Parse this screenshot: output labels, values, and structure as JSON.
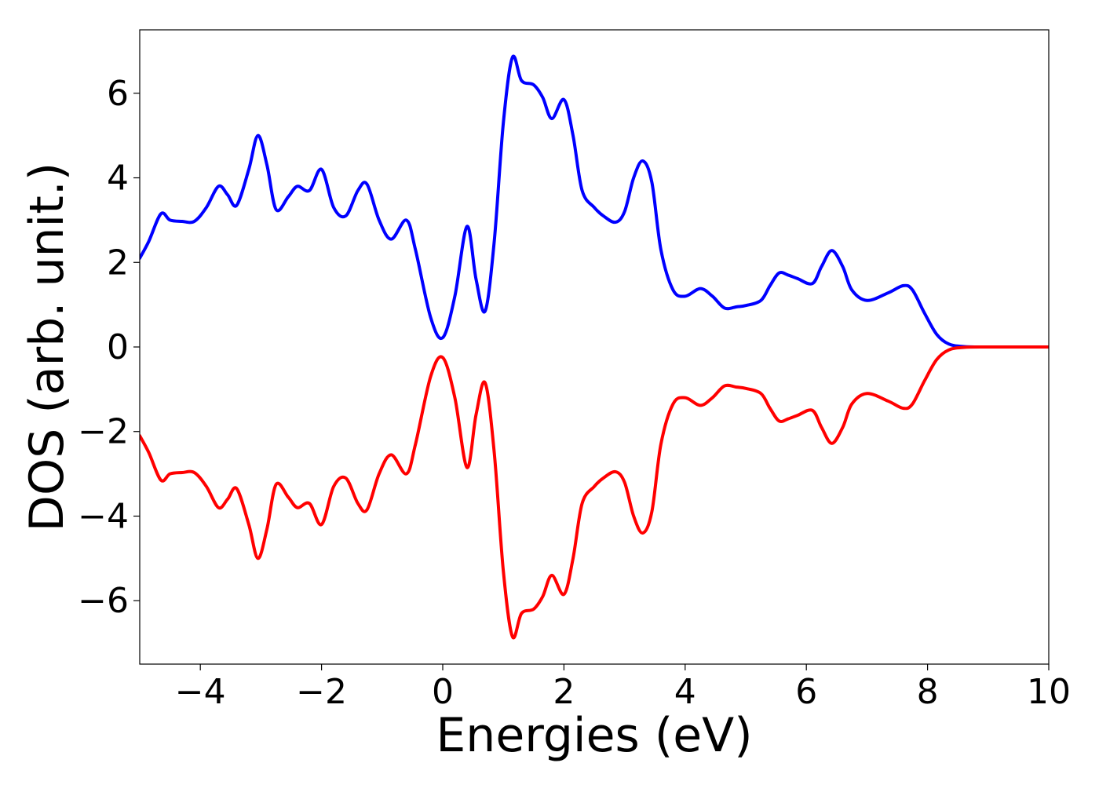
{
  "chart_data": {
    "type": "line",
    "title": "",
    "xlabel": "Energies (eV)",
    "ylabel": "DOS (arb. unit.)",
    "xlim": [
      -5,
      10
    ],
    "ylim": [
      -7.5,
      7.5
    ],
    "xticks": [
      -4,
      -2,
      0,
      2,
      4,
      6,
      8,
      10
    ],
    "xtick_labels": [
      "−4",
      "−2",
      "0",
      "2",
      "4",
      "6",
      "8",
      "10"
    ],
    "yticks": [
      -6,
      -4,
      -2,
      0,
      2,
      4,
      6
    ],
    "ytick_labels": [
      "−6",
      "−4",
      "−2",
      "0",
      "2",
      "4",
      "6"
    ],
    "grid": false,
    "legend": "none",
    "series": [
      {
        "color": "#0000ff",
        "points": [
          [
            -5.0,
            2.1
          ],
          [
            -4.85,
            2.5
          ],
          [
            -4.65,
            3.15
          ],
          [
            -4.5,
            3.0
          ],
          [
            -4.3,
            2.97
          ],
          [
            -4.1,
            2.97
          ],
          [
            -3.9,
            3.3
          ],
          [
            -3.7,
            3.8
          ],
          [
            -3.55,
            3.6
          ],
          [
            -3.4,
            3.35
          ],
          [
            -3.2,
            4.2
          ],
          [
            -3.05,
            5.0
          ],
          [
            -2.9,
            4.3
          ],
          [
            -2.75,
            3.25
          ],
          [
            -2.55,
            3.55
          ],
          [
            -2.4,
            3.8
          ],
          [
            -2.2,
            3.7
          ],
          [
            -2.0,
            4.2
          ],
          [
            -1.8,
            3.3
          ],
          [
            -1.6,
            3.1
          ],
          [
            -1.4,
            3.7
          ],
          [
            -1.25,
            3.85
          ],
          [
            -1.05,
            3.0
          ],
          [
            -0.85,
            2.55
          ],
          [
            -0.6,
            3.0
          ],
          [
            -0.45,
            2.3
          ],
          [
            -0.2,
            0.7
          ],
          [
            0.0,
            0.22
          ],
          [
            0.2,
            1.2
          ],
          [
            0.4,
            2.85
          ],
          [
            0.55,
            1.6
          ],
          [
            0.7,
            0.85
          ],
          [
            0.85,
            2.5
          ],
          [
            1.0,
            5.3
          ],
          [
            1.15,
            6.85
          ],
          [
            1.3,
            6.3
          ],
          [
            1.5,
            6.2
          ],
          [
            1.65,
            5.9
          ],
          [
            1.8,
            5.4
          ],
          [
            2.0,
            5.85
          ],
          [
            2.15,
            5.0
          ],
          [
            2.3,
            3.7
          ],
          [
            2.5,
            3.3
          ],
          [
            2.65,
            3.1
          ],
          [
            2.85,
            2.95
          ],
          [
            3.0,
            3.2
          ],
          [
            3.15,
            4.0
          ],
          [
            3.3,
            4.4
          ],
          [
            3.45,
            3.9
          ],
          [
            3.6,
            2.3
          ],
          [
            3.8,
            1.35
          ],
          [
            4.0,
            1.2
          ],
          [
            4.25,
            1.38
          ],
          [
            4.45,
            1.2
          ],
          [
            4.65,
            0.92
          ],
          [
            4.85,
            0.95
          ],
          [
            5.0,
            0.98
          ],
          [
            5.25,
            1.1
          ],
          [
            5.4,
            1.45
          ],
          [
            5.55,
            1.75
          ],
          [
            5.7,
            1.7
          ],
          [
            5.85,
            1.62
          ],
          [
            6.1,
            1.5
          ],
          [
            6.25,
            1.9
          ],
          [
            6.42,
            2.28
          ],
          [
            6.6,
            1.9
          ],
          [
            6.75,
            1.35
          ],
          [
            7.0,
            1.1
          ],
          [
            7.35,
            1.28
          ],
          [
            7.6,
            1.45
          ],
          [
            7.75,
            1.35
          ],
          [
            7.95,
            0.8
          ],
          [
            8.15,
            0.3
          ],
          [
            8.35,
            0.07
          ],
          [
            8.6,
            0.01
          ],
          [
            9.0,
            0.0
          ],
          [
            10.0,
            0.0
          ]
        ]
      },
      {
        "color": "#ff0000",
        "points": [
          [
            -5.0,
            -2.1
          ],
          [
            -4.85,
            -2.5
          ],
          [
            -4.65,
            -3.15
          ],
          [
            -4.5,
            -3.0
          ],
          [
            -4.3,
            -2.97
          ],
          [
            -4.1,
            -2.97
          ],
          [
            -3.9,
            -3.3
          ],
          [
            -3.7,
            -3.8
          ],
          [
            -3.55,
            -3.6
          ],
          [
            -3.4,
            -3.35
          ],
          [
            -3.2,
            -4.2
          ],
          [
            -3.05,
            -5.0
          ],
          [
            -2.9,
            -4.3
          ],
          [
            -2.75,
            -3.25
          ],
          [
            -2.55,
            -3.55
          ],
          [
            -2.4,
            -3.8
          ],
          [
            -2.2,
            -3.7
          ],
          [
            -2.0,
            -4.2
          ],
          [
            -1.8,
            -3.3
          ],
          [
            -1.6,
            -3.1
          ],
          [
            -1.4,
            -3.7
          ],
          [
            -1.25,
            -3.85
          ],
          [
            -1.05,
            -3.0
          ],
          [
            -0.85,
            -2.55
          ],
          [
            -0.6,
            -3.0
          ],
          [
            -0.45,
            -2.3
          ],
          [
            -0.2,
            -0.7
          ],
          [
            0.0,
            -0.25
          ],
          [
            0.2,
            -1.2
          ],
          [
            0.4,
            -2.85
          ],
          [
            0.55,
            -1.6
          ],
          [
            0.7,
            -0.85
          ],
          [
            0.85,
            -2.5
          ],
          [
            1.0,
            -5.3
          ],
          [
            1.15,
            -6.85
          ],
          [
            1.3,
            -6.3
          ],
          [
            1.5,
            -6.2
          ],
          [
            1.65,
            -5.9
          ],
          [
            1.8,
            -5.4
          ],
          [
            2.0,
            -5.85
          ],
          [
            2.15,
            -5.0
          ],
          [
            2.3,
            -3.7
          ],
          [
            2.5,
            -3.3
          ],
          [
            2.65,
            -3.1
          ],
          [
            2.85,
            -2.95
          ],
          [
            3.0,
            -3.2
          ],
          [
            3.15,
            -4.0
          ],
          [
            3.3,
            -4.4
          ],
          [
            3.45,
            -3.9
          ],
          [
            3.6,
            -2.3
          ],
          [
            3.8,
            -1.35
          ],
          [
            4.0,
            -1.2
          ],
          [
            4.25,
            -1.38
          ],
          [
            4.45,
            -1.2
          ],
          [
            4.65,
            -0.92
          ],
          [
            4.85,
            -0.95
          ],
          [
            5.0,
            -0.98
          ],
          [
            5.25,
            -1.1
          ],
          [
            5.4,
            -1.45
          ],
          [
            5.55,
            -1.75
          ],
          [
            5.7,
            -1.7
          ],
          [
            5.85,
            -1.62
          ],
          [
            6.1,
            -1.5
          ],
          [
            6.25,
            -1.9
          ],
          [
            6.42,
            -2.28
          ],
          [
            6.6,
            -1.9
          ],
          [
            6.75,
            -1.35
          ],
          [
            7.0,
            -1.1
          ],
          [
            7.35,
            -1.28
          ],
          [
            7.6,
            -1.45
          ],
          [
            7.75,
            -1.35
          ],
          [
            7.95,
            -0.8
          ],
          [
            8.15,
            -0.3
          ],
          [
            8.35,
            -0.07
          ],
          [
            8.6,
            -0.01
          ],
          [
            9.0,
            0.0
          ],
          [
            10.0,
            0.0
          ]
        ]
      }
    ]
  }
}
